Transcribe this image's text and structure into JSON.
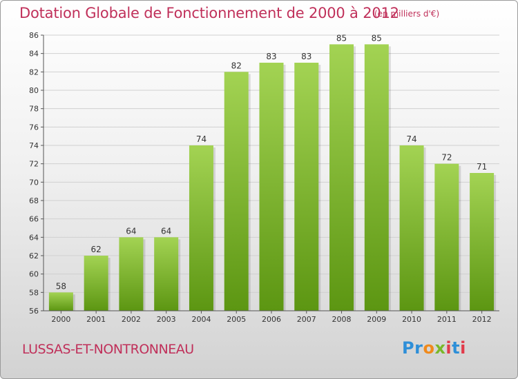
{
  "header": {
    "title": "Dotation Globale de Fonctionnement de 2000 à 2012",
    "unit": "(en milliers d'€)"
  },
  "footer": {
    "commune": "LUSSAS-ET-NONTRONNEAU",
    "logo": "Proxiti"
  },
  "colors": {
    "title": "#c0305a",
    "bar_light": "#a3d353",
    "bar_dark": "#5c9612",
    "grid": "#d0d0d0"
  },
  "chart_data": {
    "type": "bar",
    "title": "Dotation Globale de Fonctionnement de 2000 à 2012",
    "xlabel": "",
    "ylabel": "",
    "categories": [
      "2000",
      "2001",
      "2002",
      "2003",
      "2004",
      "2005",
      "2006",
      "2007",
      "2008",
      "2009",
      "2010",
      "2011",
      "2012"
    ],
    "values": [
      58,
      62,
      64,
      64,
      74,
      82,
      83,
      83,
      85,
      85,
      74,
      72,
      71
    ],
    "ylim": [
      56,
      86
    ],
    "yticks": [
      56,
      58,
      60,
      62,
      64,
      66,
      68,
      70,
      72,
      74,
      76,
      78,
      80,
      82,
      84,
      86
    ],
    "grid": true,
    "data_labels": true
  }
}
